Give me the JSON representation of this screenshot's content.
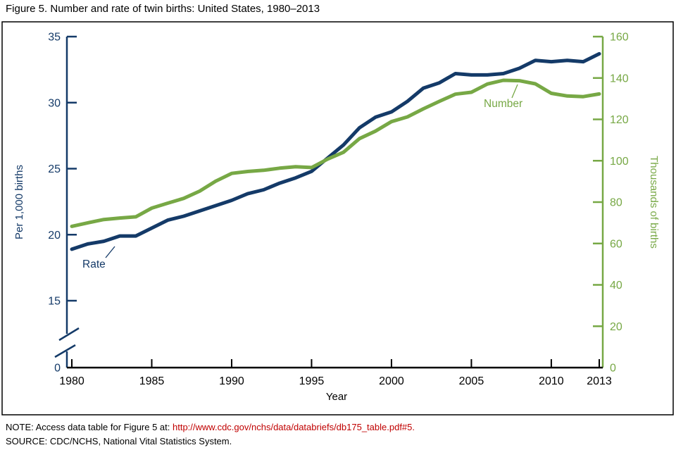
{
  "figure": {
    "title": "Figure 5. Number and rate of twin births: United States, 1980–2013",
    "note_prefix": "NOTE: Access data table for Figure 5 at: ",
    "note_link": "http://www.cdc.gov/nchs/data/databriefs/db175_table.pdf#5.",
    "source": "SOURCE: CDC/NCHS, National Vital Statistics System."
  },
  "colors": {
    "rate_navy": "#143A68",
    "number_green": "#77A845",
    "axis_black": "#000000",
    "link_red": "#C00000"
  },
  "chart_data": {
    "type": "line",
    "title": "Figure 5. Number and rate of twin births: United States, 1980–2013",
    "xlabel": "Year",
    "x": [
      1980,
      1981,
      1982,
      1983,
      1984,
      1985,
      1986,
      1987,
      1988,
      1989,
      1990,
      1991,
      1992,
      1993,
      1994,
      1995,
      1996,
      1997,
      1998,
      1999,
      2000,
      2001,
      2002,
      2003,
      2004,
      2005,
      2006,
      2007,
      2008,
      2009,
      2010,
      2011,
      2012,
      2013
    ],
    "x_ticks": [
      1980,
      1985,
      1990,
      1995,
      2000,
      2005,
      2010,
      2013
    ],
    "series": [
      {
        "name": "Rate",
        "axis": "left",
        "color_key": "rate_navy",
        "values": [
          18.9,
          19.3,
          19.5,
          19.9,
          19.9,
          20.5,
          21.1,
          21.4,
          21.8,
          22.2,
          22.6,
          23.1,
          23.4,
          23.9,
          24.3,
          24.8,
          25.8,
          26.8,
          28.1,
          28.9,
          29.3,
          30.1,
          31.1,
          31.5,
          32.2,
          32.1,
          32.1,
          32.2,
          32.6,
          33.2,
          33.1,
          33.2,
          33.1,
          33.7
        ]
      },
      {
        "name": "Number",
        "axis": "right",
        "color_key": "number_green",
        "values": [
          68.3,
          70.0,
          71.6,
          72.3,
          72.9,
          77.1,
          79.5,
          81.8,
          85.3,
          90.1,
          93.9,
          94.8,
          95.4,
          96.4,
          97.1,
          96.7,
          100.8,
          104.1,
          110.7,
          114.3,
          118.9,
          121.2,
          125.1,
          128.7,
          132.2,
          133.1,
          137.1,
          138.9,
          138.7,
          137.2,
          132.6,
          131.3,
          131.0,
          132.3
        ]
      }
    ],
    "left_axis": {
      "label": "Per 1,000 births",
      "ticks": [
        35,
        30,
        25,
        20,
        15,
        0
      ],
      "max": 35,
      "linear_min": 15,
      "broken_to_zero": true
    },
    "right_axis": {
      "label": "Thousands of births",
      "ticks": [
        160,
        140,
        120,
        100,
        80,
        60,
        40,
        20,
        0
      ],
      "min": 0,
      "max": 160
    },
    "annotations": [
      {
        "text": "Rate",
        "series": "Rate",
        "color_key": "rate_navy"
      },
      {
        "text": "Number",
        "series": "Number",
        "color_key": "number_green"
      }
    ],
    "legend_position": "inline-annotations",
    "grid": false
  }
}
